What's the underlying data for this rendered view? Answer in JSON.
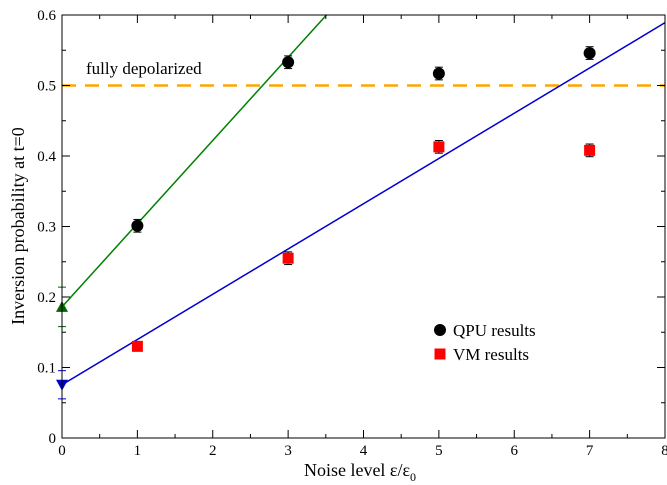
{
  "chart_data": {
    "type": "scatter",
    "title": "",
    "xlabel": "Noise level ε/ε",
    "xlabel_sub": "0",
    "ylabel": "Inversion probability at t=0",
    "xlim": [
      0,
      8
    ],
    "ylim": [
      0,
      0.6
    ],
    "xticks": [
      0,
      1,
      2,
      3,
      4,
      5,
      6,
      7,
      8
    ],
    "yticks": [
      0,
      0.1,
      0.2,
      0.3,
      0.4,
      0.5,
      0.6
    ],
    "xtick_labels": [
      "0",
      "1",
      "2",
      "3",
      "4",
      "5",
      "6",
      "7",
      "8"
    ],
    "ytick_labels": [
      "0",
      "0.1",
      "0.2",
      "0.3",
      "0.4",
      "0.5",
      "0.6"
    ],
    "grid": false,
    "legend_position": "lower-right",
    "series": [
      {
        "name": "QPU results",
        "marker": "circle",
        "color": "#000000",
        "x": [
          1,
          3,
          5,
          7
        ],
        "y": [
          0.301,
          0.533,
          0.517,
          0.546
        ],
        "err": [
          0.009,
          0.009,
          0.009,
          0.009
        ]
      },
      {
        "name": "VM results",
        "marker": "square",
        "color": "#ff0000",
        "x": [
          1,
          3,
          5,
          7
        ],
        "y": [
          0.13,
          0.255,
          0.413,
          0.408
        ],
        "err": [
          0.005,
          0.009,
          0.009,
          0.009
        ]
      }
    ],
    "fits": [
      {
        "color": "#008000",
        "x0": 0,
        "intercept": 0.186,
        "slope": 0.118
      },
      {
        "color": "#0000cc",
        "x0": 0,
        "intercept": 0.0755,
        "slope": 0.0642
      }
    ],
    "extrapolated": [
      {
        "marker": "triangle-up",
        "color": "#006400",
        "x": 0,
        "y": 0.186,
        "err": 0.028
      },
      {
        "marker": "triangle-down",
        "color": "#0000cc",
        "x": 0,
        "y": 0.0755,
        "err": 0.02
      }
    ],
    "reference_line": {
      "y": 0.5,
      "color": "#ffa500",
      "style": "dashed",
      "label": "fully depolarized"
    }
  }
}
